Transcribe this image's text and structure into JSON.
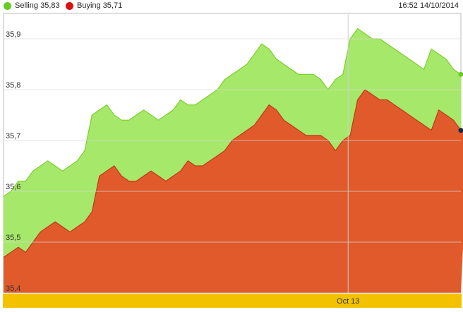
{
  "legend": {
    "selling_label": "Selling 35,83",
    "buying_label": "Buying 35,71",
    "timestamp": "16:52 14/10/2014"
  },
  "colors": {
    "selling": "#a6e86a",
    "selling_line": "#7ccf2a",
    "selling_dot": "#66cc22",
    "buying": "#e05a2b",
    "buying_line": "#c0391b",
    "buying_dot": "#dd1111",
    "axis_band": "#f2c200",
    "grid": "#d8d8d8"
  },
  "chart_data": {
    "type": "area",
    "x_tick_labels": [
      "Oct 13"
    ],
    "y_tick_labels": [
      "35,9",
      "35,8",
      "35,7",
      "35,6",
      "35,5",
      "35,4"
    ],
    "ylim": [
      35.4,
      35.95
    ],
    "grid": true,
    "legend_position": "top-left",
    "series": [
      {
        "name": "Selling",
        "values": [
          35.59,
          35.6,
          35.62,
          35.62,
          35.64,
          35.65,
          35.66,
          35.65,
          35.64,
          35.65,
          35.66,
          35.68,
          35.75,
          35.76,
          35.77,
          35.75,
          35.74,
          35.74,
          35.75,
          35.76,
          35.75,
          35.74,
          35.75,
          35.76,
          35.78,
          35.77,
          35.77,
          35.78,
          35.79,
          35.8,
          35.82,
          35.83,
          35.84,
          35.85,
          35.87,
          35.89,
          35.88,
          35.86,
          35.85,
          35.84,
          35.83,
          35.83,
          35.83,
          35.82,
          35.8,
          35.82,
          35.83,
          35.9,
          35.92,
          35.91,
          35.9,
          35.9,
          35.89,
          35.88,
          35.87,
          35.86,
          35.85,
          35.84,
          35.88,
          35.87,
          35.86,
          35.84,
          35.83
        ]
      },
      {
        "name": "Buying",
        "values": [
          35.47,
          35.48,
          35.49,
          35.48,
          35.5,
          35.52,
          35.53,
          35.54,
          35.53,
          35.52,
          35.53,
          35.54,
          35.56,
          35.63,
          35.64,
          35.65,
          35.63,
          35.62,
          35.62,
          35.63,
          35.64,
          35.63,
          35.62,
          35.63,
          35.64,
          35.66,
          35.65,
          35.65,
          35.66,
          35.67,
          35.68,
          35.7,
          35.71,
          35.72,
          35.73,
          35.75,
          35.77,
          35.76,
          35.74,
          35.73,
          35.72,
          35.71,
          35.71,
          35.71,
          35.7,
          35.68,
          35.7,
          35.71,
          35.78,
          35.8,
          35.79,
          35.78,
          35.78,
          35.77,
          35.76,
          35.75,
          35.74,
          35.73,
          35.72,
          35.76,
          35.75,
          35.74,
          35.72,
          35.71
        ]
      }
    ]
  }
}
